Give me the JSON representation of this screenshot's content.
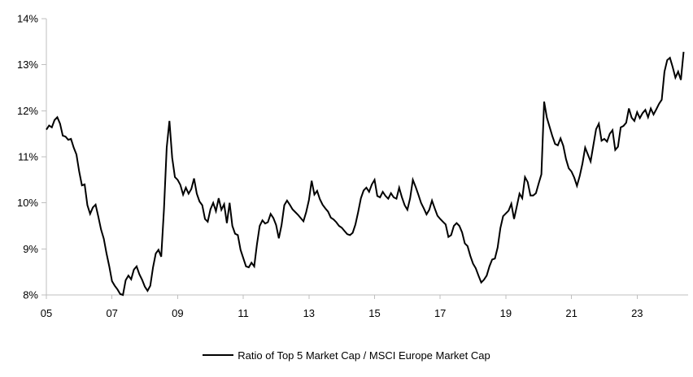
{
  "chart_data": {
    "type": "line",
    "title": "",
    "legend_label": "Ratio of Top 5 Market Cap / MSCI Europe Market Cap",
    "legend_position": "bottom-center",
    "grid": false,
    "background": "#ffffff",
    "colors": {
      "line": "#000000",
      "axis": "#bfbfbf",
      "tick": "#bfbfbf",
      "text": "#000000"
    },
    "ylabel": "",
    "xlabel": "",
    "ylim": [
      8,
      14
    ],
    "y_ticks": [
      {
        "label": "8%",
        "value": 8
      },
      {
        "label": "9%",
        "value": 9
      },
      {
        "label": "10%",
        "value": 10
      },
      {
        "label": "11%",
        "value": 11
      },
      {
        "label": "12%",
        "value": 12
      },
      {
        "label": "13%",
        "value": 13
      },
      {
        "label": "14%",
        "value": 14
      }
    ],
    "x_ticks": [
      {
        "label": "05",
        "year": 2005
      },
      {
        "label": "07",
        "year": 2007
      },
      {
        "label": "09",
        "year": 2009
      },
      {
        "label": "11",
        "year": 2011
      },
      {
        "label": "13",
        "year": 2013
      },
      {
        "label": "15",
        "year": 2015
      },
      {
        "label": "17",
        "year": 2017
      },
      {
        "label": "19",
        "year": 2019
      },
      {
        "label": "21",
        "year": 2021
      },
      {
        "label": "23",
        "year": 2023
      }
    ],
    "x_axis": {
      "frequency": "monthly",
      "start": "2005-01",
      "end": "2024-06",
      "start_year": 2005
    },
    "series": [
      {
        "name": "Ratio of Top 5 Market Cap / MSCI Europe Market Cap",
        "unit": "%",
        "values": [
          11.59,
          11.68,
          11.64,
          11.8,
          11.86,
          11.72,
          11.46,
          11.44,
          11.37,
          11.39,
          11.2,
          11.05,
          10.68,
          10.38,
          10.4,
          9.95,
          9.76,
          9.9,
          9.96,
          9.7,
          9.42,
          9.22,
          8.9,
          8.62,
          8.3,
          8.2,
          8.12,
          8.02,
          8.0,
          8.32,
          8.42,
          8.34,
          8.55,
          8.62,
          8.45,
          8.33,
          8.18,
          8.09,
          8.2,
          8.6,
          8.9,
          8.98,
          8.83,
          9.86,
          11.2,
          11.78,
          10.98,
          10.56,
          10.5,
          10.39,
          10.18,
          10.33,
          10.2,
          10.3,
          10.53,
          10.2,
          10.03,
          9.95,
          9.65,
          9.59,
          9.86,
          10.0,
          9.82,
          10.1,
          9.85,
          9.97,
          9.56,
          10.0,
          9.5,
          9.33,
          9.3,
          8.98,
          8.8,
          8.62,
          8.6,
          8.7,
          8.62,
          9.1,
          9.5,
          9.62,
          9.55,
          9.58,
          9.76,
          9.67,
          9.52,
          9.23,
          9.52,
          9.95,
          10.05,
          9.96,
          9.86,
          9.8,
          9.74,
          9.67,
          9.6,
          9.8,
          10.06,
          10.48,
          10.18,
          10.26,
          10.08,
          9.96,
          9.88,
          9.81,
          9.68,
          9.64,
          9.58,
          9.5,
          9.46,
          9.39,
          9.32,
          9.3,
          9.35,
          9.53,
          9.8,
          10.1,
          10.27,
          10.33,
          10.24,
          10.4,
          10.5,
          10.15,
          10.12,
          10.24,
          10.15,
          10.09,
          10.21,
          10.12,
          10.09,
          10.33,
          10.12,
          9.95,
          9.85,
          10.1,
          10.5,
          10.35,
          10.18,
          10.0,
          9.88,
          9.75,
          9.85,
          10.05,
          9.88,
          9.72,
          9.65,
          9.59,
          9.53,
          9.26,
          9.3,
          9.5,
          9.56,
          9.5,
          9.36,
          9.12,
          9.06,
          8.85,
          8.68,
          8.58,
          8.42,
          8.27,
          8.33,
          8.42,
          8.62,
          8.77,
          8.79,
          9.03,
          9.45,
          9.71,
          9.77,
          9.83,
          9.98,
          9.65,
          9.92,
          10.2,
          10.1,
          10.56,
          10.45,
          10.16,
          10.16,
          10.21,
          10.42,
          10.62,
          12.2,
          11.85,
          11.65,
          11.45,
          11.28,
          11.25,
          11.4,
          11.24,
          10.95,
          10.75,
          10.68,
          10.55,
          10.37,
          10.58,
          10.85,
          11.2,
          11.05,
          10.9,
          11.25,
          11.6,
          11.72,
          11.35,
          11.39,
          11.33,
          11.5,
          11.58,
          11.15,
          11.22,
          11.64,
          11.67,
          11.74,
          12.05,
          11.85,
          11.78,
          11.97,
          11.84,
          11.95,
          12.02,
          11.86,
          12.05,
          11.92,
          12.03,
          12.15,
          12.24,
          12.85,
          13.1,
          13.15,
          12.95,
          12.72,
          12.85,
          12.67,
          13.28
        ]
      }
    ]
  }
}
